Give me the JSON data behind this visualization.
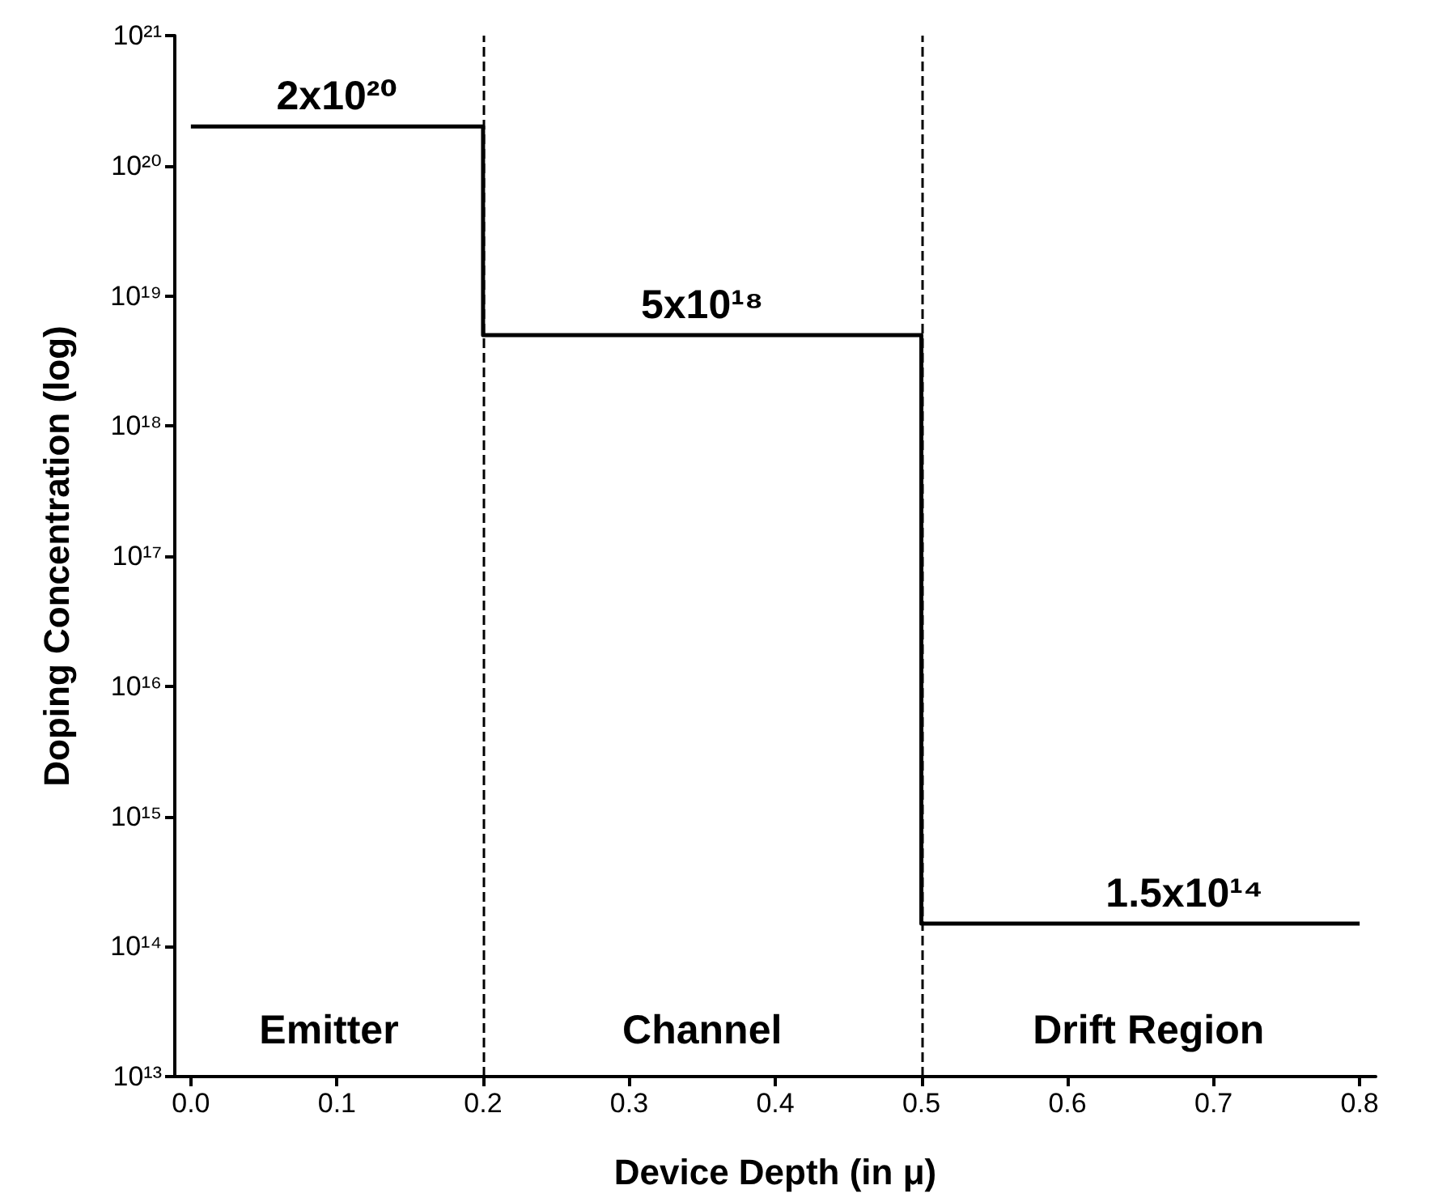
{
  "chart_data": {
    "type": "step",
    "xlabel": "Device Depth (in μ)",
    "ylabel": "Doping Concentration (log)",
    "x": [
      0,
      0.2,
      0.5,
      0.8
    ],
    "series": [
      {
        "color": "#000000",
        "values": [
          2e+20,
          5e+18,
          150000000000000.0,
          150000000000000.0
        ]
      }
    ],
    "log": "y",
    "grid": false,
    "marker": "none",
    "line_style": "solid",
    "xlim": [
      -0.011,
      0.811
    ],
    "ylim": [
      10000000000000.0,
      1e+21
    ],
    "xticks": [
      {
        "value": 0,
        "label": "0.0"
      },
      {
        "value": 0.1,
        "label": "0.1"
      },
      {
        "value": 0.2,
        "label": "0.2"
      },
      {
        "value": 0.3,
        "label": "0.3"
      },
      {
        "value": 0.4,
        "label": "0.4"
      },
      {
        "value": 0.5,
        "label": "0.5"
      },
      {
        "value": 0.6,
        "label": "0.6"
      },
      {
        "value": 0.7,
        "label": "0.7"
      },
      {
        "value": 0.8,
        "label": "0.8"
      }
    ],
    "yticks": [
      {
        "value": 10000000000000.0,
        "label": "10¹³"
      },
      {
        "value": 100000000000000.0,
        "label": "10¹⁴"
      },
      {
        "value": 1000000000000000.0,
        "label": "10¹⁵"
      },
      {
        "value": 1e+16,
        "label": "10¹⁶"
      },
      {
        "value": 1e+17,
        "label": "10¹⁷"
      },
      {
        "value": 1e+18,
        "label": "10¹⁸"
      },
      {
        "value": 1e+19,
        "label": "10¹⁹"
      },
      {
        "value": 1e+20,
        "label": "10²⁰"
      },
      {
        "value": 1e+21,
        "label": "10²¹"
      }
    ],
    "ref_lines": [
      {
        "axis": "x",
        "value": 0.2,
        "color": "#000000",
        "line_style": "dashed"
      },
      {
        "axis": "x",
        "value": 0.5,
        "color": "#000000",
        "line_style": "dashed"
      }
    ],
    "annotations": [
      {
        "text": "2x10²⁰",
        "x": 0.1,
        "y": 2e+20
      },
      {
        "text": "5x10¹⁸",
        "x": 0.35,
        "y": 5e+18
      },
      {
        "text": "1.5x10¹⁴",
        "x": 0.68,
        "y": 150000000000000.0
      },
      "Emitter",
      "Channel",
      "Drift Region"
    ]
  }
}
